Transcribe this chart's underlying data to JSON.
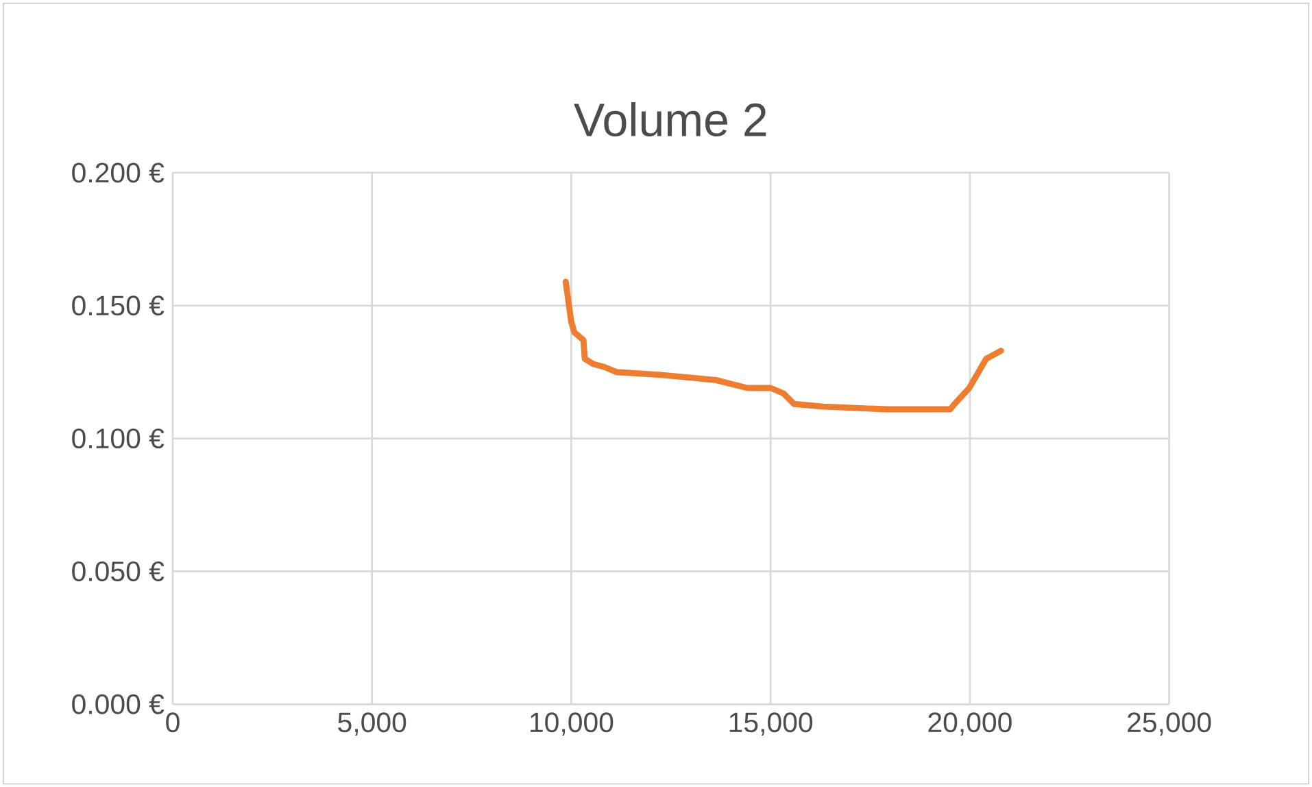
{
  "chart_data": {
    "type": "line",
    "title": "Volume 2",
    "x": [
      9860,
      9997,
      10073,
      10305,
      10337,
      10550,
      10814,
      11132,
      12191,
      13623,
      14418,
      15002,
      15320,
      15585,
      16327,
      17917,
      19507,
      19615,
      19985,
      20410,
      20780
    ],
    "series": [
      {
        "color": "#ed7d31",
        "values": [
          0.159,
          0.144,
          0.14,
          0.137,
          0.13,
          0.128,
          0.127,
          0.125,
          0.124,
          0.122,
          0.119,
          0.119,
          0.117,
          0.113,
          0.112,
          0.111,
          0.111,
          0.113,
          0.119,
          0.13,
          0.133
        ]
      }
    ],
    "xlim": [
      0,
      25000
    ],
    "xticks": [
      0,
      {
        "value": 5000,
        "label": "5,000"
      },
      {
        "value": 10000,
        "label": "10,000"
      },
      {
        "value": 15000,
        "label": "15,000"
      },
      {
        "value": 20000,
        "label": "20,000"
      },
      {
        "value": 25000,
        "label": "25,000"
      }
    ],
    "ylim": [
      0,
      0.2
    ],
    "yticks": [
      {
        "value": 0,
        "label": "0.000 €"
      },
      {
        "value": 0.05,
        "label": "0.050 €"
      },
      {
        "value": 0.1,
        "label": "0.100 €"
      },
      {
        "value": 0.15,
        "label": "0.150 €"
      },
      {
        "value": 0.2,
        "label": "0.200 €"
      }
    ],
    "grid": true,
    "marker": "none",
    "line_style": "solid"
  }
}
